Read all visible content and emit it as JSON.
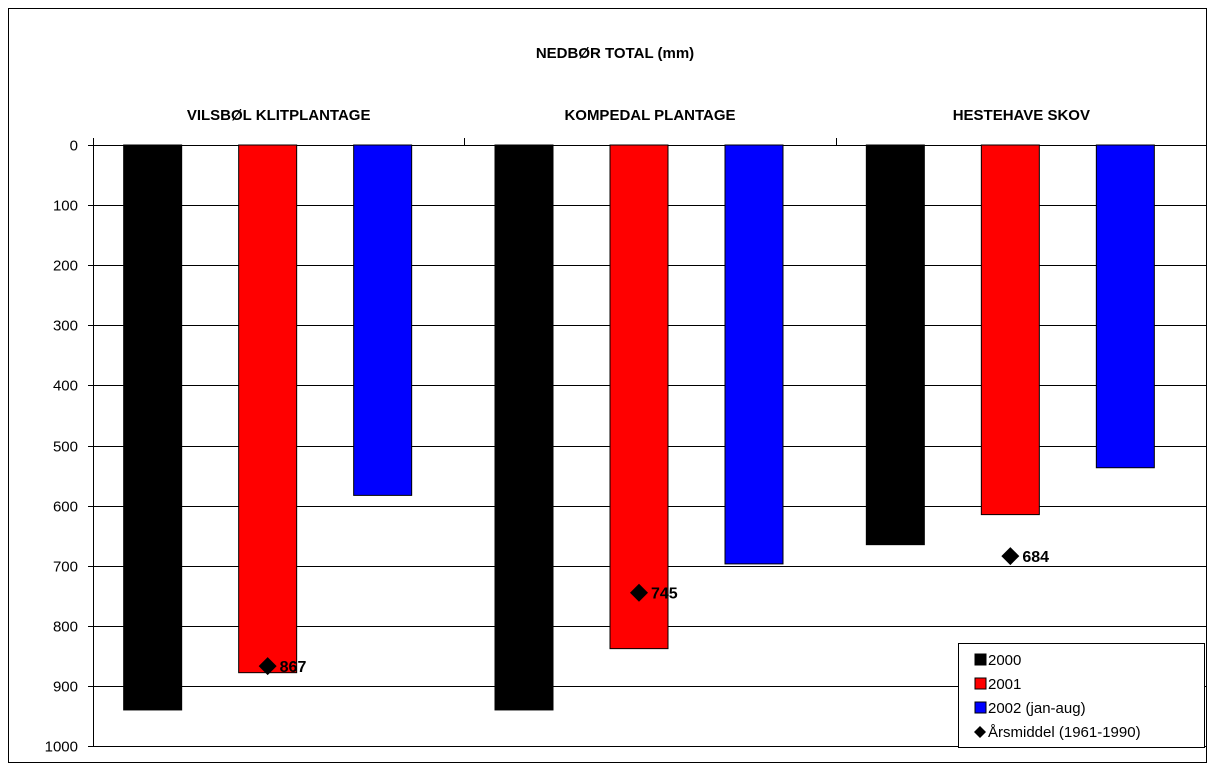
{
  "chart_data": {
    "type": "bar",
    "title": "NEDBØR TOTAL (mm)",
    "categories": [
      "VILSBØL KLITPLANTAGE",
      "KOMPEDAL PLANTAGE",
      "HESTEHAVE SKOV"
    ],
    "ylim": [
      0,
      1000
    ],
    "y_reversed": true,
    "y_ticks": [
      0,
      100,
      200,
      300,
      400,
      500,
      600,
      700,
      800,
      900,
      1000
    ],
    "grid": true,
    "legend_position": "bottom-right",
    "series": [
      {
        "name": "2000",
        "values": [
          940,
          940,
          665
        ],
        "color": "#000000"
      },
      {
        "name": "2001",
        "values": [
          878,
          838,
          615
        ],
        "color": "#ff0000"
      },
      {
        "name": "2002 (jan-aug)",
        "values": [
          583,
          697,
          537
        ],
        "color": "#0000ff"
      }
    ],
    "markers": {
      "name": "Årsmiddel (1961-1990)",
      "values": [
        867,
        745,
        684
      ],
      "labels": [
        "867",
        "745",
        "684"
      ],
      "color": "#000000",
      "shape": "diamond"
    }
  }
}
